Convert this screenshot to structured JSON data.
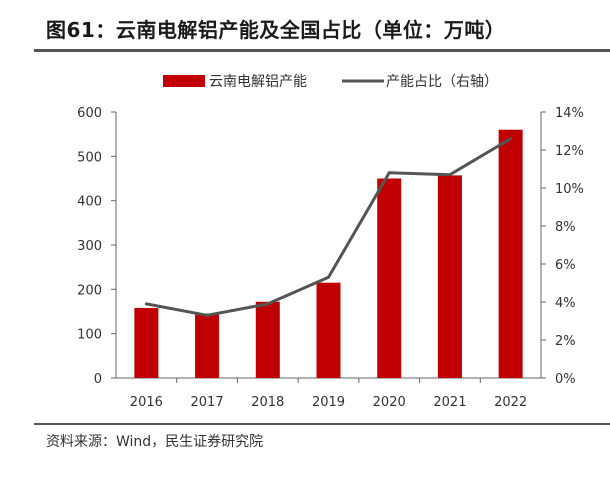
{
  "header": {
    "title": "图61：云南电解铝产能及全国占比（单位：万吨）"
  },
  "footer": {
    "source": "资料来源：Wind，民生证券研究院"
  },
  "colors": {
    "bar": "#c00000",
    "line": "#555555",
    "axis": "#666666"
  },
  "chart_data": {
    "type": "bar",
    "title": "",
    "categories": [
      "2016",
      "2017",
      "2018",
      "2019",
      "2020",
      "2021",
      "2022"
    ],
    "series": [
      {
        "name": "云南电解铝产能",
        "type": "bar",
        "axis": "left",
        "values": [
          158,
          145,
          172,
          215,
          450,
          457,
          560
        ]
      },
      {
        "name": "产能占比（右轴）",
        "type": "line",
        "axis": "right",
        "values": [
          3.9,
          3.3,
          3.9,
          5.3,
          10.8,
          10.7,
          12.6
        ]
      }
    ],
    "ylim": [
      0,
      600
    ],
    "yticks": [
      "0",
      "100",
      "200",
      "300",
      "400",
      "500",
      "600"
    ],
    "y2lim": [
      0,
      14
    ],
    "y2ticks": [
      "0%",
      "2%",
      "4%",
      "6%",
      "8%",
      "10%",
      "12%",
      "14%"
    ],
    "grid": false,
    "legend": "top"
  }
}
